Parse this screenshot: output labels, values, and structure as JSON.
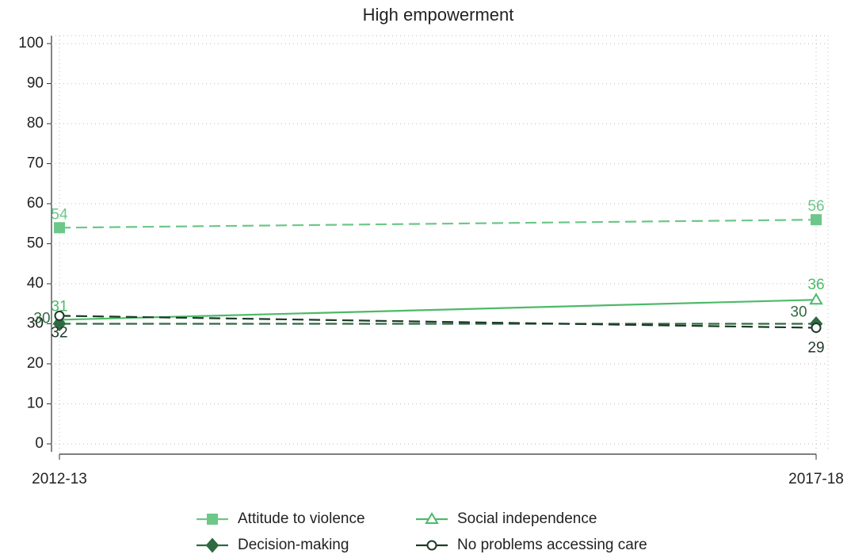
{
  "chart_data": {
    "type": "line",
    "title": "High empowerment",
    "categories": [
      "2012-13",
      "2017-18"
    ],
    "series": [
      {
        "name": "Attitude to violence",
        "color": "#6cc788",
        "dashed": true,
        "marker": "square",
        "values": [
          54,
          56
        ]
      },
      {
        "name": "Social independence",
        "color": "#4dba68",
        "dashed": false,
        "marker": "triangle",
        "values": [
          31,
          36
        ]
      },
      {
        "name": "Decision-making",
        "color": "#2f6b40",
        "dashed": true,
        "marker": "diamond",
        "values": [
          30,
          30
        ]
      },
      {
        "name": "No problems accessing care",
        "color": "#1e3a28",
        "dashed": true,
        "marker": "circle",
        "values": [
          32,
          29
        ]
      }
    ],
    "ylim": [
      0,
      100
    ],
    "yticks": [
      0,
      10,
      20,
      30,
      40,
      50,
      60,
      70,
      80,
      90,
      100
    ],
    "grid": true
  }
}
